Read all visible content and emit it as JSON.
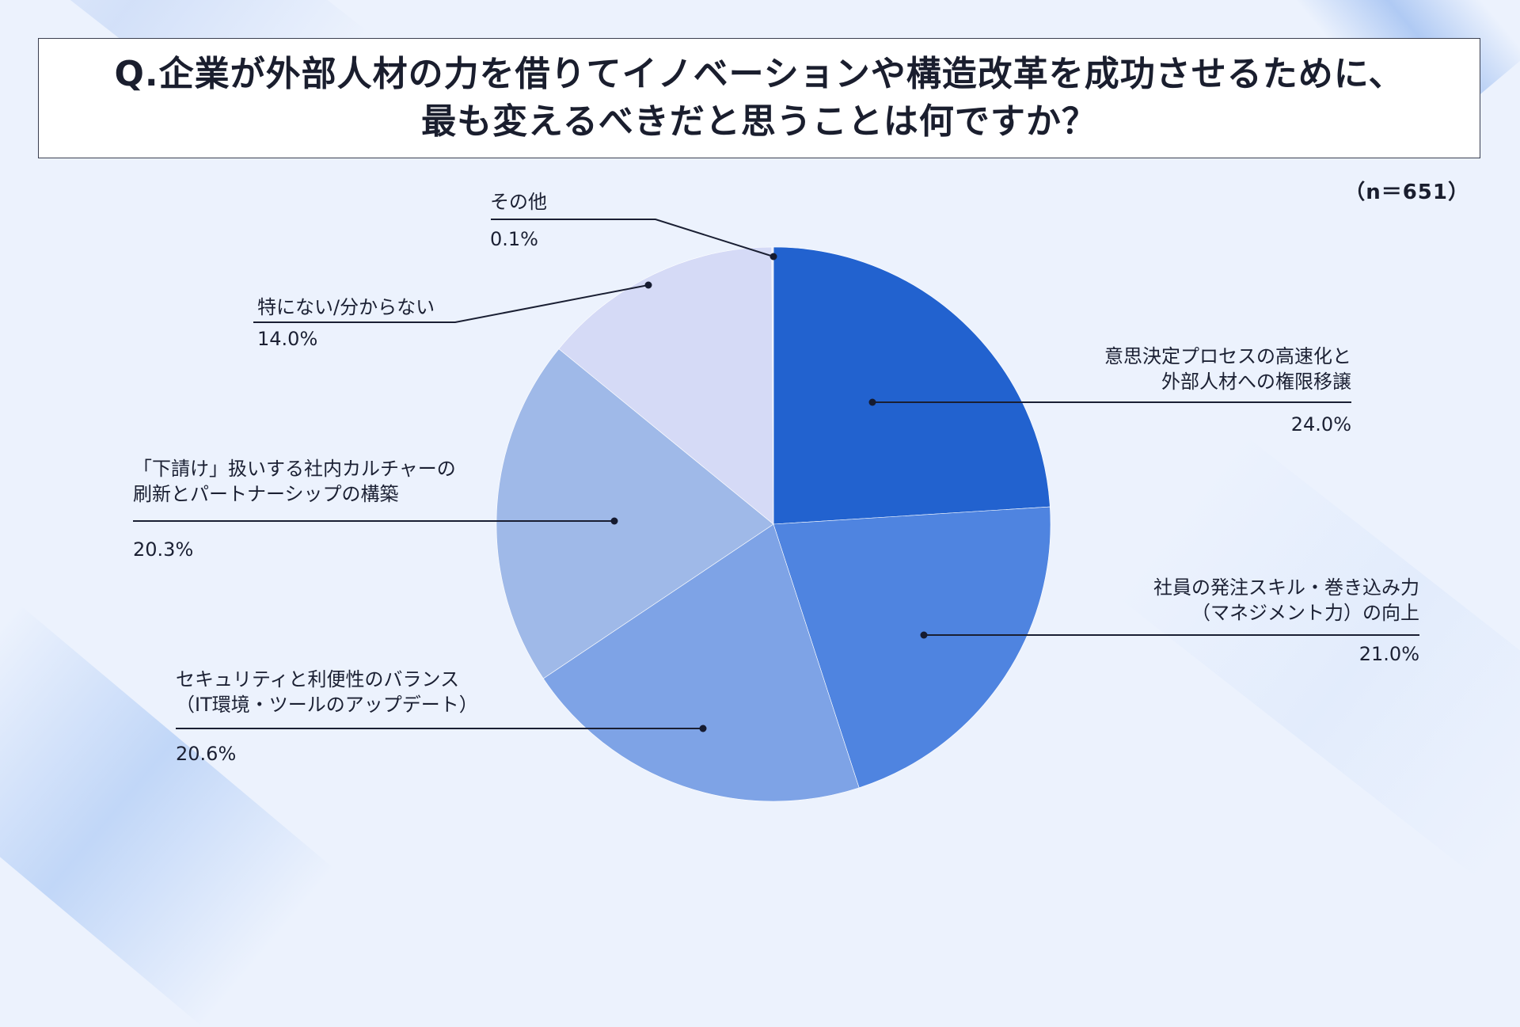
{
  "title": {
    "line1": "Q.企業が外部人材の力を借りてイノベーションや構造改革を成功させるために、",
    "line2": "最も変えるべきだと思うことは何ですか？"
  },
  "sample_size": "（n＝651）",
  "chart_data": {
    "type": "pie",
    "title": "Q.企業が外部人材の力を借りてイノベーションや構造改革を成功させるために、最も変えるべきだと思うことは何ですか？",
    "start_angle_deg": 0,
    "direction": "clockwise",
    "legend": "none",
    "slices": [
      {
        "label_lines": [
          "意思決定プロセスの高速化と",
          "外部人材への権限移譲"
        ],
        "value": 24.0,
        "value_label": "24.0%",
        "color": "#2262cf"
      },
      {
        "label_lines": [
          "社員の発注スキル・巻き込み力",
          "（マネジメント力）の向上"
        ],
        "value": 21.0,
        "value_label": "21.0%",
        "color": "#4f84e0"
      },
      {
        "label_lines": [
          "セキュリティと利便性のバランス",
          "（IT環境・ツールのアップデート）"
        ],
        "value": 20.6,
        "value_label": "20.6%",
        "color": "#7ea3e6"
      },
      {
        "label_lines": [
          "「下請け」扱いする社内カルチャーの",
          "刷新とパートナーシップの構築"
        ],
        "value": 20.3,
        "value_label": "20.3%",
        "color": "#9fb9e8"
      },
      {
        "label_lines": [
          "特にない/分からない"
        ],
        "value": 14.0,
        "value_label": "14.0%",
        "color": "#d5daf6"
      },
      {
        "label_lines": [
          "その他"
        ],
        "value": 0.1,
        "value_label": "0.1%",
        "color": "#e9ecfb"
      }
    ]
  }
}
